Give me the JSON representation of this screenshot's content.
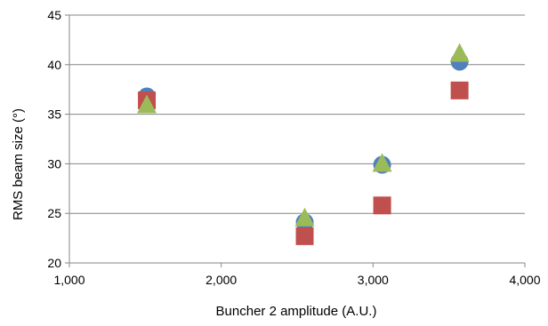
{
  "chart_data": {
    "type": "scatter",
    "xlabel": "Buncher 2 amplitude (A.U.)",
    "ylabel": "RMS beam size (°)",
    "xlim": [
      1000,
      4000
    ],
    "ylim": [
      20,
      45
    ],
    "xticks": [
      1000,
      2000,
      3000,
      4000
    ],
    "xtick_labels": [
      "1,000",
      "2,000",
      "3,000",
      "4,000"
    ],
    "yticks": [
      20,
      25,
      30,
      35,
      40,
      45
    ],
    "ytick_labels": [
      "20",
      "25",
      "30",
      "35",
      "40",
      "45"
    ],
    "grid": "horizontal",
    "legend": "none",
    "series": [
      {
        "marker": "circle",
        "color": "#4F81BD",
        "x": [
          1510,
          2550,
          3060,
          3570
        ],
        "y": [
          36.8,
          24.1,
          29.9,
          40.3
        ]
      },
      {
        "marker": "square",
        "color": "#C0504D",
        "x": [
          1510,
          2550,
          3060,
          3570
        ],
        "y": [
          36.4,
          22.7,
          25.8,
          37.4
        ]
      },
      {
        "marker": "triangle",
        "color": "#9BBB59",
        "x": [
          1510,
          2550,
          3060,
          3570
        ],
        "y": [
          35.9,
          24.5,
          30.0,
          41.1
        ]
      }
    ]
  }
}
